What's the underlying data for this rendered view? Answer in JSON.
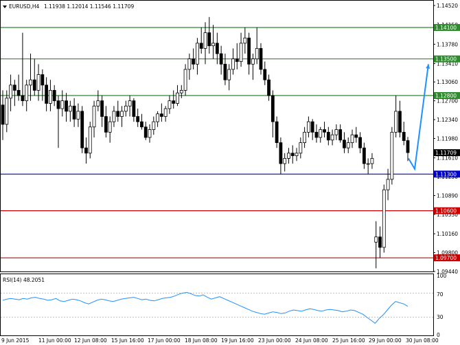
{
  "header": {
    "symbol": "EURUSD,H4",
    "values": "1.11938 1.12014 1.11546 1.11709",
    "arrow_icon": "triangle-down-icon"
  },
  "rsi": {
    "label": "RSI(14) 48.2051",
    "levels": [
      "100",
      "70",
      "30",
      "0"
    ]
  },
  "time_axis": [
    "9 Jun 2015",
    "11 Jun 00:00",
    "12 Jun 08:00",
    "15 Jun 16:00",
    "17 Jun 00:00",
    "18 Jun 08:00",
    "19 Jun 16:00",
    "23 Jun 00:00",
    "24 Jun 08:00",
    "25 Jun 16:00",
    "29 Jun 00:00",
    "30 Jun 08:00"
  ],
  "chart_data": {
    "type": "candlestick",
    "price_ticks": [
      "1.14520",
      "1.14150",
      "1.13780",
      "1.13410",
      "1.13060",
      "1.12700",
      "1.12340",
      "1.11980",
      "1.11610",
      "1.11250",
      "1.10890",
      "1.10530",
      "1.10160",
      "1.09800",
      "1.09440"
    ],
    "ylim": [
      1.0944,
      1.1452
    ],
    "levels": [
      {
        "value": 1.141,
        "label": "1.14100",
        "color": "#2e8b2e"
      },
      {
        "value": 1.135,
        "label": "1.13500",
        "color": "#2e8b2e"
      },
      {
        "value": 1.128,
        "label": "1.12800",
        "color": "#2e8b2e"
      },
      {
        "value": 1.113,
        "label": "1.11300",
        "color": "#0000cc"
      },
      {
        "value": 1.106,
        "label": "1.10600",
        "color": "#cc0000"
      },
      {
        "value": 1.097,
        "label": "1.09700",
        "color": "#cc0000"
      }
    ],
    "current_price": {
      "value": 1.11709,
      "label": "1.11709"
    },
    "forecast_color": "#1e90ff",
    "candles": [
      [
        1.1262,
        1.129,
        1.1195,
        1.1225
      ],
      [
        1.1225,
        1.129,
        1.121,
        1.1275
      ],
      [
        1.1275,
        1.132,
        1.125,
        1.13
      ],
      [
        1.13,
        1.131,
        1.126,
        1.129
      ],
      [
        1.129,
        1.132,
        1.127,
        1.128
      ],
      [
        1.128,
        1.14,
        1.126,
        1.127
      ],
      [
        1.127,
        1.131,
        1.125,
        1.13
      ],
      [
        1.13,
        1.136,
        1.127,
        1.131
      ],
      [
        1.131,
        1.135,
        1.128,
        1.129
      ],
      [
        1.129,
        1.134,
        1.127,
        1.132
      ],
      [
        1.132,
        1.133,
        1.127,
        1.13
      ],
      [
        1.13,
        1.1315,
        1.125,
        1.1265
      ],
      [
        1.1265,
        1.131,
        1.125,
        1.129
      ],
      [
        1.129,
        1.13,
        1.126,
        1.127
      ],
      [
        1.127,
        1.128,
        1.118,
        1.1255
      ],
      [
        1.1255,
        1.129,
        1.124,
        1.127
      ],
      [
        1.127,
        1.1285,
        1.123,
        1.125
      ],
      [
        1.125,
        1.127,
        1.123,
        1.126
      ],
      [
        1.126,
        1.1275,
        1.122,
        1.1235
      ],
      [
        1.1235,
        1.1265,
        1.122,
        1.125
      ],
      [
        1.125,
        1.126,
        1.117,
        1.118
      ],
      [
        1.118,
        1.12,
        1.115,
        1.117
      ],
      [
        1.117,
        1.123,
        1.116,
        1.122
      ],
      [
        1.122,
        1.127,
        1.12,
        1.126
      ],
      [
        1.126,
        1.129,
        1.125,
        1.127
      ],
      [
        1.127,
        1.128,
        1.122,
        1.124
      ],
      [
        1.124,
        1.126,
        1.12,
        1.121
      ],
      [
        1.121,
        1.124,
        1.119,
        1.123
      ],
      [
        1.123,
        1.126,
        1.122,
        1.125
      ],
      [
        1.125,
        1.127,
        1.123,
        1.124
      ],
      [
        1.124,
        1.126,
        1.122,
        1.125
      ],
      [
        1.125,
        1.127,
        1.124,
        1.126
      ],
      [
        1.126,
        1.128,
        1.124,
        1.127
      ],
      [
        1.127,
        1.1275,
        1.123,
        1.124
      ],
      [
        1.124,
        1.1255,
        1.122,
        1.123
      ],
      [
        1.123,
        1.1245,
        1.1215,
        1.122
      ],
      [
        1.122,
        1.123,
        1.1195,
        1.12
      ],
      [
        1.12,
        1.1225,
        1.119,
        1.1215
      ],
      [
        1.1215,
        1.124,
        1.1205,
        1.123
      ],
      [
        1.123,
        1.125,
        1.122,
        1.1245
      ],
      [
        1.1245,
        1.1265,
        1.123,
        1.124
      ],
      [
        1.124,
        1.126,
        1.123,
        1.1255
      ],
      [
        1.1255,
        1.128,
        1.1245,
        1.127
      ],
      [
        1.127,
        1.129,
        1.1255,
        1.1265
      ],
      [
        1.1265,
        1.13,
        1.126,
        1.1285
      ],
      [
        1.1285,
        1.13,
        1.1275,
        1.129
      ],
      [
        1.129,
        1.134,
        1.128,
        1.133
      ],
      [
        1.133,
        1.136,
        1.131,
        1.135
      ],
      [
        1.135,
        1.137,
        1.133,
        1.134
      ],
      [
        1.134,
        1.139,
        1.132,
        1.138
      ],
      [
        1.138,
        1.141,
        1.136,
        1.137
      ],
      [
        1.137,
        1.142,
        1.134,
        1.14
      ],
      [
        1.14,
        1.143,
        1.136,
        1.1375
      ],
      [
        1.1375,
        1.1415,
        1.135,
        1.138
      ],
      [
        1.138,
        1.14,
        1.134,
        1.136
      ],
      [
        1.136,
        1.1375,
        1.132,
        1.134
      ],
      [
        1.134,
        1.136,
        1.13,
        1.131
      ],
      [
        1.131,
        1.134,
        1.129,
        1.133
      ],
      [
        1.133,
        1.137,
        1.132,
        1.135
      ],
      [
        1.135,
        1.138,
        1.133,
        1.1345
      ],
      [
        1.1345,
        1.14,
        1.1335,
        1.138
      ],
      [
        1.138,
        1.141,
        1.136,
        1.139
      ],
      [
        1.139,
        1.14,
        1.132,
        1.134
      ],
      [
        1.134,
        1.136,
        1.131,
        1.135
      ],
      [
        1.135,
        1.141,
        1.134,
        1.137
      ],
      [
        1.137,
        1.138,
        1.132,
        1.133
      ],
      [
        1.133,
        1.1345,
        1.13,
        1.131
      ],
      [
        1.131,
        1.132,
        1.127,
        1.128
      ],
      [
        1.128,
        1.129,
        1.12,
        1.123
      ],
      [
        1.123,
        1.124,
        1.118,
        1.119
      ],
      [
        1.119,
        1.12,
        1.113,
        1.115
      ],
      [
        1.115,
        1.117,
        1.1135,
        1.116
      ],
      [
        1.116,
        1.118,
        1.115,
        1.117
      ],
      [
        1.117,
        1.1185,
        1.115,
        1.1165
      ],
      [
        1.1165,
        1.118,
        1.1155,
        1.117
      ],
      [
        1.117,
        1.12,
        1.116,
        1.119
      ],
      [
        1.119,
        1.122,
        1.118,
        1.121
      ],
      [
        1.121,
        1.124,
        1.12,
        1.123
      ],
      [
        1.123,
        1.1235,
        1.1195,
        1.121
      ],
      [
        1.121,
        1.1225,
        1.119,
        1.12
      ],
      [
        1.12,
        1.122,
        1.119,
        1.1215
      ],
      [
        1.1215,
        1.123,
        1.12,
        1.121
      ],
      [
        1.121,
        1.122,
        1.1185,
        1.1195
      ],
      [
        1.1195,
        1.1215,
        1.1185,
        1.1205
      ],
      [
        1.1205,
        1.1225,
        1.1195,
        1.1215
      ],
      [
        1.1215,
        1.1225,
        1.119,
        1.1195
      ],
      [
        1.1195,
        1.121,
        1.117,
        1.118
      ],
      [
        1.118,
        1.12,
        1.117,
        1.119
      ],
      [
        1.119,
        1.1215,
        1.118,
        1.1205
      ],
      [
        1.1205,
        1.122,
        1.119,
        1.12
      ],
      [
        1.12,
        1.121,
        1.117,
        1.118
      ],
      [
        1.118,
        1.119,
        1.114,
        1.115
      ],
      [
        1.115,
        1.116,
        1.113,
        1.115
      ],
      [
        1.115,
        1.117,
        1.114,
        1.116
      ],
      [
        1.1,
        1.104,
        1.095,
        1.101
      ],
      [
        1.101,
        1.103,
        1.097,
        1.099
      ],
      [
        1.099,
        1.111,
        1.098,
        1.11
      ],
      [
        1.11,
        1.114,
        1.108,
        1.112
      ],
      [
        1.112,
        1.122,
        1.111,
        1.121
      ],
      [
        1.121,
        1.128,
        1.12,
        1.125
      ],
      [
        1.125,
        1.127,
        1.12,
        1.121
      ],
      [
        1.121,
        1.123,
        1.1185,
        1.1194
      ],
      [
        1.1194,
        1.1201,
        1.1155,
        1.1171
      ]
    ],
    "rsi_values": [
      58,
      60,
      61,
      60,
      59,
      61,
      60,
      62,
      63,
      61,
      60,
      58,
      59,
      61,
      57,
      56,
      58,
      60,
      59,
      57,
      54,
      52,
      55,
      58,
      60,
      59,
      57,
      56,
      58,
      60,
      61,
      62,
      63,
      61,
      59,
      60,
      58,
      57,
      59,
      61,
      62,
      63,
      65,
      68,
      70,
      71,
      69,
      66,
      65,
      67,
      63,
      60,
      62,
      64,
      61,
      58,
      55,
      52,
      49,
      46,
      43,
      40,
      38,
      36,
      35,
      37,
      39,
      38,
      36,
      37,
      40,
      42,
      41,
      40,
      42,
      44,
      43,
      41,
      40,
      42,
      43,
      42,
      41,
      39,
      40,
      42,
      41,
      38,
      35,
      30,
      25,
      20,
      28,
      34,
      42,
      50,
      56,
      54,
      52,
      48
    ],
    "rsi_levels": [
      70,
      30
    ]
  }
}
